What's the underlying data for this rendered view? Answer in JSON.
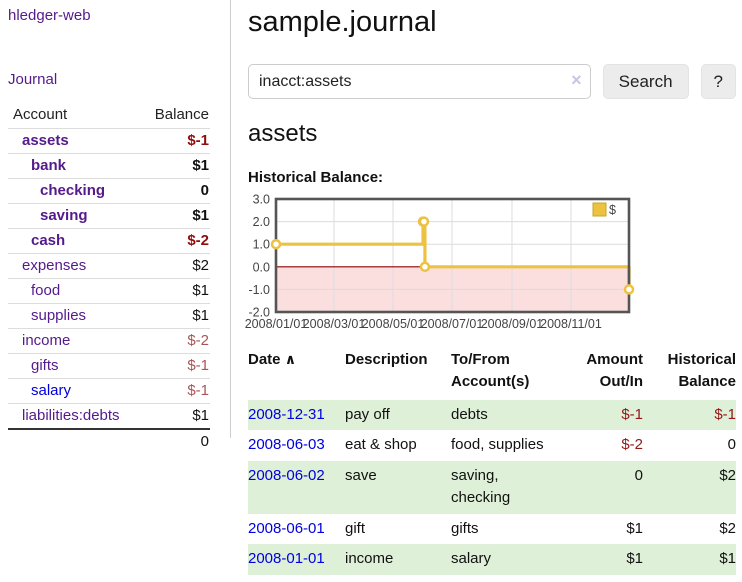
{
  "app": {
    "title": "hledger-web"
  },
  "sidebar": {
    "nav": {
      "journal_label": "Journal"
    },
    "table": {
      "headers": {
        "account": "Account",
        "balance": "Balance"
      },
      "accounts": [
        {
          "name": "assets",
          "balance": "$-1",
          "depth": 1
        },
        {
          "name": "bank",
          "balance": "$1",
          "depth": 2
        },
        {
          "name": "checking",
          "balance": "0",
          "depth": 3
        },
        {
          "name": "saving",
          "balance": "$1",
          "depth": 3
        },
        {
          "name": "cash",
          "balance": "$-2",
          "depth": 2
        },
        {
          "name": "expenses",
          "balance": "$2",
          "depth": 1
        },
        {
          "name": "food",
          "balance": "$1",
          "depth": 2
        },
        {
          "name": "supplies",
          "balance": "$1",
          "depth": 2
        },
        {
          "name": "income",
          "balance": "$-2",
          "depth": 1
        },
        {
          "name": "gifts",
          "balance": "$-1",
          "depth": 2
        },
        {
          "name": "salary",
          "balance": "$-1",
          "depth": 2
        },
        {
          "name": "liabilities:debts",
          "balance": "$1",
          "depth": 1
        }
      ],
      "total": "0"
    }
  },
  "main": {
    "title": "sample.journal",
    "search": {
      "value": "inacct:assets",
      "clear_glyph": "×",
      "search_button": "Search",
      "help_button": "?"
    },
    "account_heading": "assets",
    "chart": {
      "label": "Historical Balance:",
      "chart_data": {
        "type": "line",
        "style": "step-after",
        "series": [
          {
            "name": "$",
            "color": "#edc240",
            "points": [
              [
                "2008-01-01",
                1.0
              ],
              [
                "2008-06-01",
                2.0
              ],
              [
                "2008-06-02",
                2.0
              ],
              [
                "2008-06-03",
                0.0
              ],
              [
                "2008-12-31",
                -1.0
              ]
            ]
          }
        ],
        "x_ticks": [
          "2008/01/01",
          "2008/03/01",
          "2008/05/01",
          "2008/07/01",
          "2008/09/01",
          "2008/11/01"
        ],
        "y_ticks": [
          "3.0",
          "2.0",
          "1.0",
          "0.0",
          "-1.0",
          "-2.0"
        ],
        "x_range": [
          "2008-01-01",
          "2008-12-31"
        ],
        "y_range": [
          -2,
          3
        ],
        "legend": {
          "label": "$",
          "position": "top-right"
        },
        "grid": true,
        "grid_color": "#dcdcdc",
        "negative_region_color": "#fbdfdf",
        "zero_line_color": "#8b0000",
        "border_color": "#555555"
      }
    },
    "register": {
      "headers": {
        "date": "Date",
        "sort_glyph": "∧",
        "description": "Description",
        "tofrom_line1": "To/From",
        "tofrom_line2": "Account(s)",
        "amount_line1": "Amount",
        "amount_line2": "Out/In",
        "balance_line1": "Historical",
        "balance_line2": "Balance"
      },
      "rows": [
        {
          "date": "2008-12-31",
          "description": "pay off",
          "accounts": "debts",
          "amount": "$-1",
          "balance": "$-1"
        },
        {
          "date": "2008-06-03",
          "description": "eat & shop",
          "accounts": "food, supplies",
          "amount": "$-2",
          "balance": "0"
        },
        {
          "date": "2008-06-02",
          "description": "save",
          "accounts": "saving, checking",
          "amount": "0",
          "balance": "$2"
        },
        {
          "date": "2008-06-01",
          "description": "gift",
          "accounts": "gifts",
          "amount": "$1",
          "balance": "$2"
        },
        {
          "date": "2008-01-01",
          "description": "income",
          "accounts": "salary",
          "amount": "$1",
          "balance": "$1"
        }
      ]
    }
  },
  "colors": {
    "link_visited": "#551a8b",
    "link": "#0000dd",
    "negative_strong": "#8f0d0d",
    "negative_soft": "#aa5555",
    "row_shade_green": "#dff0d8",
    "chart_line": "#edc240",
    "button_bg": "#ececec"
  }
}
